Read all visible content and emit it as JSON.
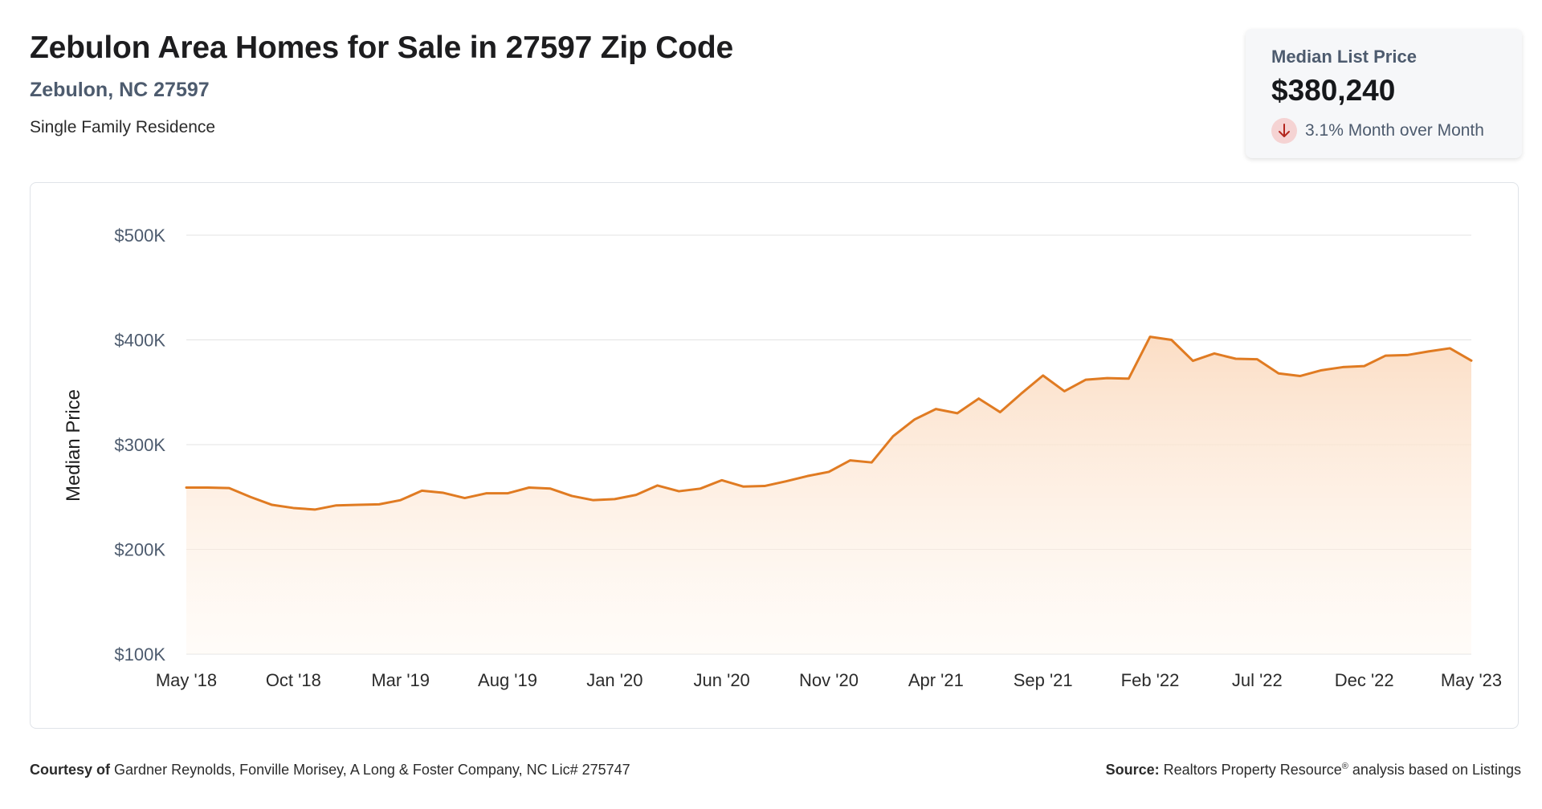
{
  "header": {
    "title": "Zebulon Area Homes for Sale in 27597 Zip Code",
    "location": "Zebulon, NC 27597",
    "property_type": "Single Family Residence"
  },
  "stat_card": {
    "label": "Median List Price",
    "value": "$380,240",
    "change": "3.1% Month over Month",
    "direction": "down",
    "icon": "arrow-down-icon"
  },
  "footer": {
    "courtesy_label": "Courtesy of",
    "courtesy_text": "Gardner Reynolds, Fonville Morisey, A Long & Foster Company, NC Lic# 275747",
    "source_label": "Source:",
    "source_name": "Realtors Property Resource",
    "source_mark": "®",
    "source_text": "analysis based on Listings"
  },
  "colors": {
    "line": "#e07b22",
    "fill_top": "#fbdcc2",
    "grid": "#e3e3e3",
    "label": "#4d5b6e"
  },
  "chart_data": {
    "type": "area",
    "title": "",
    "xlabel": "",
    "ylabel": "Median Price",
    "ylim": [
      100000,
      500000
    ],
    "y_ticks": [
      100000,
      200000,
      300000,
      400000,
      500000
    ],
    "y_tick_labels": [
      "$100K",
      "$200K",
      "$300K",
      "$400K",
      "$500K"
    ],
    "x_tick_labels": [
      "May '18",
      "Oct '18",
      "Mar '19",
      "Aug '19",
      "Jan '20",
      "Jun '20",
      "Nov '20",
      "Apr '21",
      "Sep '21",
      "Feb '22",
      "Jul '22",
      "Dec '22",
      "May '23"
    ],
    "x_tick_step": 5,
    "grid": true,
    "series": [
      {
        "values": [
          259000,
          259000,
          258500,
          250000,
          242500,
          239500,
          238000,
          242000,
          242500,
          243000,
          247000,
          256000,
          254000,
          249000,
          253500,
          253500,
          259000,
          258000,
          251000,
          247000,
          248000,
          252000,
          261000,
          255500,
          258000,
          266000,
          260000,
          260500,
          265000,
          270000,
          274000,
          285000,
          283000,
          308000,
          324000,
          334000,
          330000,
          344000,
          331000,
          349000,
          366000,
          351000,
          362000,
          363500,
          363000,
          403000,
          400000,
          380000,
          387000,
          382000,
          381500,
          368000,
          365500,
          371000,
          374000,
          375000,
          385000,
          385500,
          389000,
          392000,
          380240
        ]
      }
    ]
  }
}
